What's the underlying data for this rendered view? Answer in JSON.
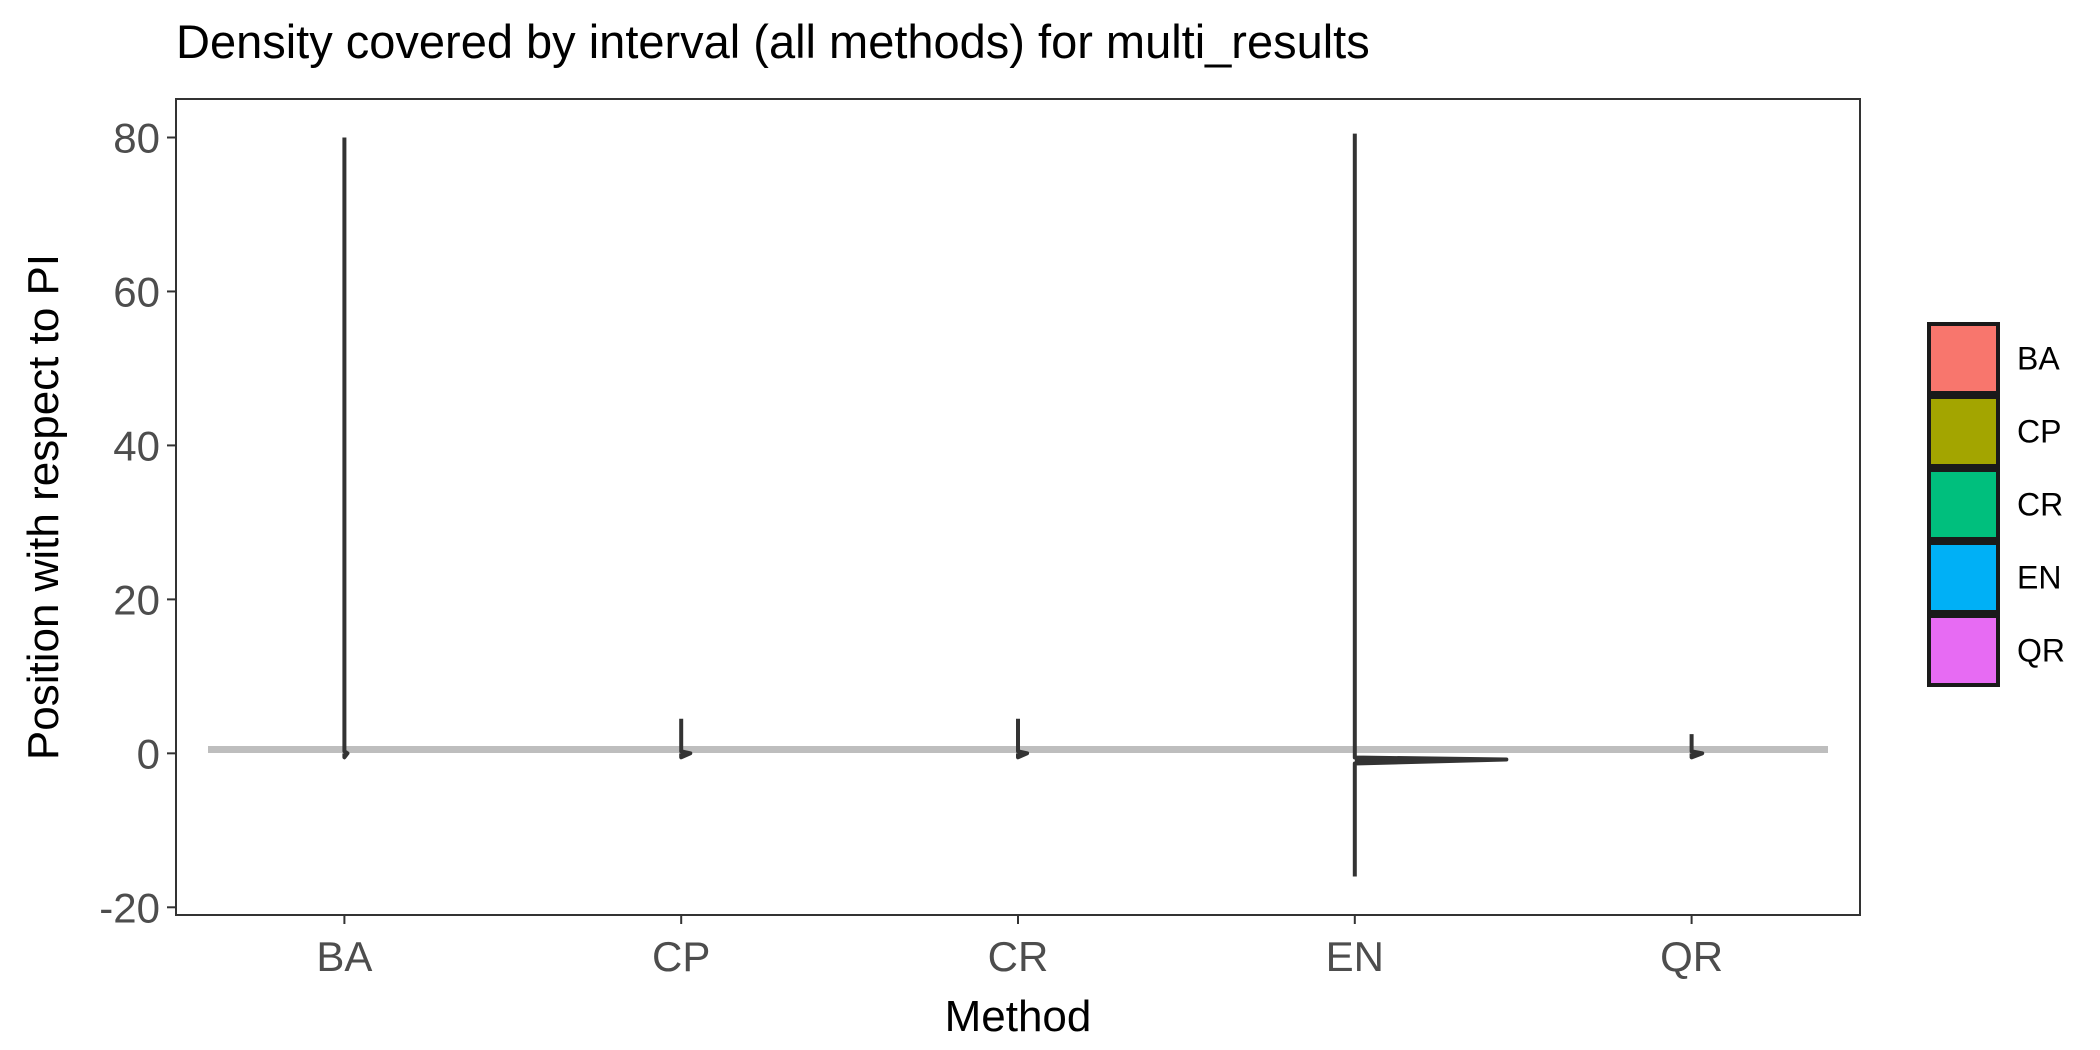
{
  "chart_data": {
    "type": "violin",
    "title": "Density covered by interval (all methods) for multi_results",
    "xlabel": "Method",
    "ylabel": "Position with respect to PI",
    "categories": [
      "BA",
      "CP",
      "CR",
      "EN",
      "QR"
    ],
    "ylim": [
      -21,
      85
    ],
    "yticks": [
      -20,
      0,
      20,
      40,
      60,
      80
    ],
    "yticks_labels": [
      "-20",
      "0",
      "20",
      "40",
      "60",
      "80"
    ],
    "reference_line": {
      "y": 0.5,
      "color": "#bebebe"
    },
    "grid": false,
    "legend": {
      "position": "right",
      "entries": [
        {
          "label": "BA",
          "color": "#F8766D"
        },
        {
          "label": "CP",
          "color": "#A3A500"
        },
        {
          "label": "CR",
          "color": "#00BF7D"
        },
        {
          "label": "EN",
          "color": "#00B0F6"
        },
        {
          "label": "QR",
          "color": "#E76BF3"
        }
      ]
    },
    "series": [
      {
        "category": "BA",
        "min": 0,
        "max": 80,
        "peak_y": 0,
        "peak_density": 0.02
      },
      {
        "category": "CP",
        "min": 0,
        "max": 4.5,
        "peak_y": 0,
        "peak_density": 0.06
      },
      {
        "category": "CR",
        "min": 0,
        "max": 4.5,
        "peak_y": 0,
        "peak_density": 0.06
      },
      {
        "category": "EN",
        "min": -16,
        "max": 80.5,
        "peak_y": -0.8,
        "peak_density": 1.0
      },
      {
        "category": "QR",
        "min": 0,
        "max": 2.5,
        "peak_y": 0,
        "peak_density": 0.07
      }
    ],
    "outline_color": "#333333"
  }
}
